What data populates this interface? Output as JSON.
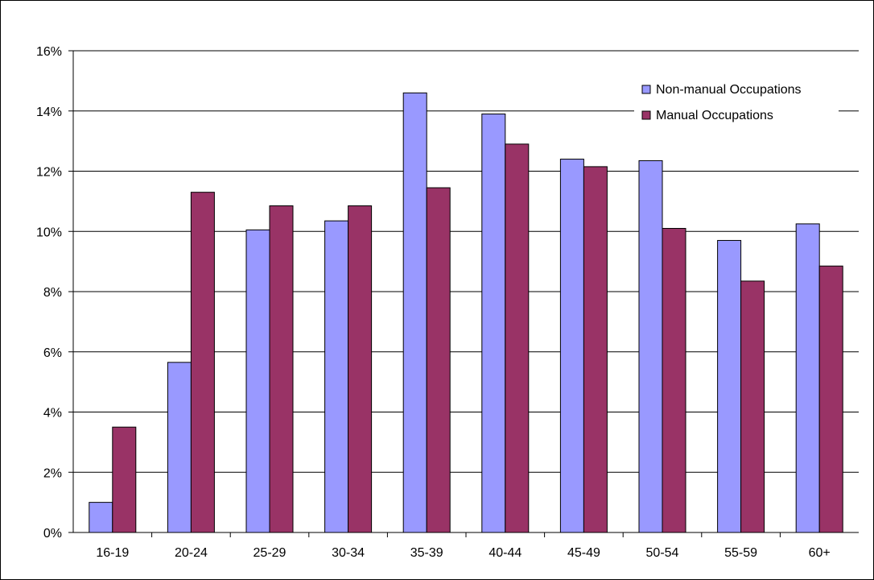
{
  "chart_data": {
    "type": "bar",
    "title": "",
    "xlabel": "",
    "ylabel": "",
    "categories": [
      "16-19",
      "20-24",
      "25-29",
      "30-34",
      "35-39",
      "40-44",
      "45-49",
      "50-54",
      "55-59",
      "60+"
    ],
    "series": [
      {
        "name": "Non-manual Occupations",
        "color": "#9999ff",
        "values": [
          1.0,
          5.65,
          10.05,
          10.35,
          14.6,
          13.9,
          12.4,
          12.35,
          9.7,
          10.25
        ]
      },
      {
        "name": "Manual Occupations",
        "color": "#993366",
        "values": [
          3.5,
          11.3,
          10.85,
          10.85,
          11.45,
          12.9,
          12.15,
          10.1,
          8.35,
          8.85
        ]
      }
    ],
    "ylim": [
      0,
      16
    ],
    "yticks": [
      "0%",
      "2%",
      "4%",
      "6%",
      "8%",
      "10%",
      "12%",
      "14%",
      "16%"
    ],
    "grid": true,
    "legend_position": "top-right"
  }
}
